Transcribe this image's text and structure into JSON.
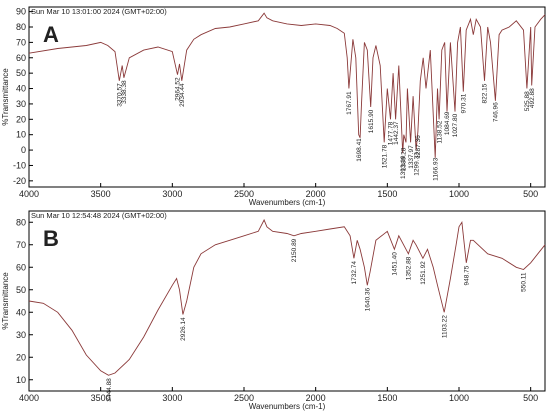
{
  "chart_data": [
    {
      "type": "line",
      "header": "Sun Mar 10 13:01:00 2024 (GMT+02:00)",
      "panel_label": "A",
      "xlabel": "Wavenumbers (cm-1)",
      "ylabel": "%Transmittance",
      "xlim": [
        4000,
        400
      ],
      "xticks": [
        4000,
        3500,
        3000,
        2500,
        2000,
        1500,
        1000,
        500
      ],
      "ylim": [
        -24,
        93
      ],
      "yticks": [
        90,
        80,
        70,
        60,
        50,
        40,
        30,
        20,
        10,
        0,
        -10,
        -20
      ],
      "x": [
        4000,
        3800,
        3600,
        3500,
        3450,
        3400,
        3370,
        3350,
        3338,
        3300,
        3200,
        3100,
        3000,
        2964,
        2950,
        2934,
        2900,
        2850,
        2800,
        2700,
        2600,
        2500,
        2400,
        2360,
        2340,
        2300,
        2200,
        2100,
        2000,
        1900,
        1850,
        1800,
        1780,
        1768,
        1760,
        1740,
        1720,
        1700,
        1690,
        1680,
        1660,
        1640,
        1616,
        1600,
        1580,
        1550,
        1522,
        1500,
        1478,
        1460,
        1442,
        1420,
        1393,
        1385,
        1370,
        1360,
        1338,
        1320,
        1299,
        1287,
        1270,
        1250,
        1230,
        1200,
        1166,
        1150,
        1139,
        1120,
        1100,
        1084,
        1060,
        1028,
        1010,
        990,
        970,
        950,
        920,
        900,
        880,
        850,
        822,
        800,
        780,
        746,
        720,
        700,
        650,
        600,
        550,
        526,
        500,
        493,
        470,
        430,
        400
      ],
      "series": [
        {
          "color": "#8b3a3a",
          "values": [
            63,
            66,
            68,
            70,
            68,
            64,
            45,
            55,
            47,
            60,
            65,
            67,
            64,
            49,
            56,
            45,
            65,
            72,
            75,
            79,
            80,
            82,
            84,
            89,
            86,
            84,
            82,
            81,
            82,
            81,
            79,
            76,
            60,
            40,
            50,
            72,
            60,
            10,
            8,
            30,
            70,
            65,
            28,
            60,
            68,
            55,
            5,
            40,
            20,
            50,
            20,
            55,
            -2,
            10,
            5,
            40,
            5,
            35,
            0,
            12,
            45,
            60,
            40,
            65,
            -5,
            40,
            20,
            65,
            70,
            25,
            70,
            25,
            70,
            80,
            38,
            78,
            85,
            75,
            85,
            80,
            45,
            80,
            70,
            32,
            75,
            78,
            80,
            84,
            78,
            40,
            80,
            42,
            80,
            85,
            88
          ]
        }
      ],
      "annotations": [
        {
          "value": 3370.57,
          "label": "3370.57"
        },
        {
          "value": 3338.38,
          "label": "3338.38"
        },
        {
          "value": 2964.52,
          "label": "2964.52"
        },
        {
          "value": 2934.44,
          "label": "2934.44"
        },
        {
          "value": 1767.91,
          "label": "1767.91"
        },
        {
          "value": 1698.41,
          "label": "1698.41"
        },
        {
          "value": 1615.9,
          "label": "1615.90"
        },
        {
          "value": 1521.78,
          "label": "1521.78"
        },
        {
          "value": 1477.78,
          "label": "1477.78"
        },
        {
          "value": 1442.37,
          "label": "1442.37"
        },
        {
          "value": 1393.19,
          "label": "1393.19"
        },
        {
          "value": 1389.28,
          "label": "1389.28"
        },
        {
          "value": 1337.97,
          "label": "1337.97"
        },
        {
          "value": 1299.33,
          "label": "1299.33"
        },
        {
          "value": 1287.36,
          "label": "1287.36"
        },
        {
          "value": 1166.93,
          "label": "1166.93"
        },
        {
          "value": 1138.52,
          "label": "1138.52"
        },
        {
          "value": 1084.69,
          "label": "1084.69"
        },
        {
          "value": 1027.8,
          "label": "1027.80"
        },
        {
          "value": 970.31,
          "label": "970.31"
        },
        {
          "value": 822.15,
          "label": "822.15"
        },
        {
          "value": 746.96,
          "label": "746.96"
        },
        {
          "value": 525.88,
          "label": "525.88"
        },
        {
          "value": 492.88,
          "label": "492.88"
        }
      ]
    },
    {
      "type": "line",
      "header": "Sun Mar 10 12:54:48 2024 (GMT+02:00)",
      "panel_label": "B",
      "xlabel": "Wavenumbers (cm-1)",
      "ylabel": "%Transmittance",
      "xlim": [
        4000,
        400
      ],
      "xticks": [
        4000,
        3500,
        3000,
        2500,
        2000,
        1500,
        1000,
        500
      ],
      "ylim": [
        5,
        85
      ],
      "yticks": [
        80,
        70,
        60,
        50,
        40,
        30,
        20,
        10
      ],
      "x": [
        4000,
        3900,
        3800,
        3700,
        3600,
        3500,
        3445,
        3400,
        3300,
        3200,
        3100,
        3000,
        2970,
        2950,
        2926,
        2900,
        2850,
        2800,
        2700,
        2600,
        2500,
        2400,
        2360,
        2340,
        2300,
        2200,
        2151,
        2100,
        2000,
        1900,
        1800,
        1760,
        1733,
        1710,
        1690,
        1660,
        1640,
        1620,
        1580,
        1500,
        1451,
        1420,
        1353,
        1320,
        1300,
        1252,
        1220,
        1180,
        1150,
        1103,
        1060,
        1020,
        1000,
        980,
        949,
        920,
        900,
        800,
        700,
        600,
        550,
        500,
        450,
        400
      ],
      "series": [
        {
          "color": "#8b3a3a",
          "values": [
            45,
            44,
            40,
            32,
            21,
            14,
            12,
            13,
            19,
            29,
            41,
            52,
            55,
            50,
            39,
            45,
            60,
            66,
            70,
            72,
            74,
            76,
            81,
            78,
            76,
            75,
            74,
            75,
            76,
            77,
            78,
            74,
            64,
            72,
            68,
            60,
            52,
            58,
            72,
            76,
            68,
            74,
            66,
            72,
            70,
            64,
            68,
            60,
            52,
            40,
            55,
            70,
            78,
            80,
            62,
            72,
            72,
            66,
            64,
            60,
            59,
            62,
            66,
            70
          ]
        }
      ],
      "annotations": [
        {
          "value": 3444.88,
          "label": "3444.88"
        },
        {
          "value": 2926.14,
          "label": "2926.14"
        },
        {
          "value": 2150.89,
          "label": "2150.89"
        },
        {
          "value": 1732.74,
          "label": "1732.74"
        },
        {
          "value": 1640.36,
          "label": "1640.36"
        },
        {
          "value": 1451.4,
          "label": "1451.40"
        },
        {
          "value": 1352.88,
          "label": "1352.88"
        },
        {
          "value": 1251.92,
          "label": "1251.92"
        },
        {
          "value": 1103.22,
          "label": "1103.22"
        },
        {
          "value": 948.75,
          "label": "948.75"
        },
        {
          "value": 550.11,
          "label": "550.11"
        }
      ]
    }
  ]
}
